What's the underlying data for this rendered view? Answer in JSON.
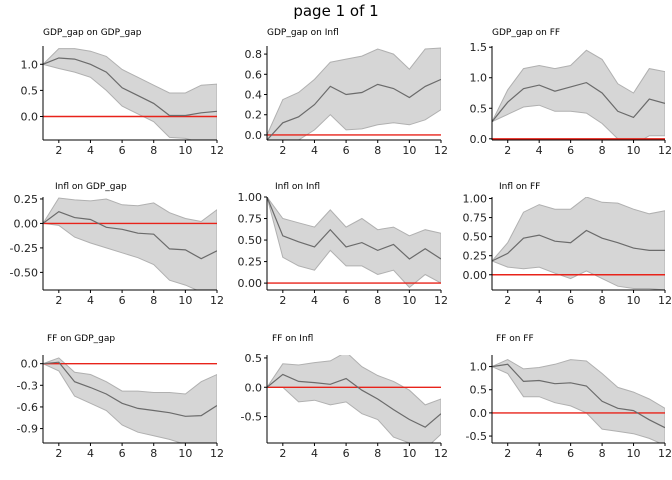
{
  "page": {
    "title": "page 1 of 1"
  },
  "colors": {
    "band": "#d6d6d6",
    "band_edge": "#b0b0b0",
    "line": "#6b6b6b",
    "zero": "#e8231a",
    "axis": "#000000"
  },
  "chart_data": [
    {
      "type": "area",
      "title": "GDP_gap on GDP_gap",
      "xlim": [
        1,
        12
      ],
      "ylim": [
        -0.45,
        1.35
      ],
      "x_ticks": [
        2,
        4,
        6,
        8,
        10,
        12
      ],
      "y_ticks": [
        0.0,
        0.5,
        1.0
      ],
      "y_tick_labels": [
        "0.0",
        "0.5",
        "1.0"
      ],
      "x": [
        1,
        2,
        3,
        4,
        5,
        6,
        7,
        8,
        9,
        10,
        11,
        12
      ],
      "series": [
        {
          "role": "upper",
          "values": [
            1.0,
            1.3,
            1.3,
            1.25,
            1.15,
            0.9,
            0.75,
            0.6,
            0.45,
            0.45,
            0.6,
            0.62
          ]
        },
        {
          "role": "estimate",
          "values": [
            1.0,
            1.12,
            1.1,
            1.0,
            0.85,
            0.55,
            0.4,
            0.25,
            0.02,
            0.02,
            0.07,
            0.1
          ]
        },
        {
          "role": "lower",
          "values": [
            1.0,
            0.92,
            0.85,
            0.75,
            0.5,
            0.2,
            0.05,
            -0.1,
            -0.4,
            -0.42,
            -0.5,
            -0.45
          ]
        }
      ]
    },
    {
      "type": "area",
      "title": "GDP_gap on Infl",
      "xlim": [
        1,
        12
      ],
      "ylim": [
        -0.05,
        0.88
      ],
      "x_ticks": [
        2,
        4,
        6,
        8,
        10,
        12
      ],
      "y_ticks": [
        0.0,
        0.2,
        0.4,
        0.6,
        0.8
      ],
      "y_tick_labels": [
        "0.0",
        "0.2",
        "0.4",
        "0.6",
        "0.8"
      ],
      "x": [
        1,
        2,
        3,
        4,
        5,
        6,
        7,
        8,
        9,
        10,
        11,
        12
      ],
      "series": [
        {
          "role": "upper",
          "values": [
            0.0,
            0.35,
            0.42,
            0.55,
            0.72,
            0.75,
            0.78,
            0.85,
            0.8,
            0.65,
            0.85,
            0.86
          ]
        },
        {
          "role": "estimate",
          "values": [
            -0.05,
            0.12,
            0.18,
            0.3,
            0.48,
            0.4,
            0.42,
            0.5,
            0.46,
            0.37,
            0.48,
            0.55
          ]
        },
        {
          "role": "lower",
          "values": [
            -0.05,
            -0.05,
            -0.05,
            0.05,
            0.2,
            0.05,
            0.06,
            0.1,
            0.12,
            0.1,
            0.15,
            0.25
          ]
        }
      ]
    },
    {
      "type": "area",
      "title": "GDP_gap on FF",
      "xlim": [
        1,
        12
      ],
      "ylim": [
        -0.02,
        1.52
      ],
      "x_ticks": [
        2,
        4,
        6,
        8,
        10,
        12
      ],
      "y_ticks": [
        0.0,
        0.5,
        1.0,
        1.5
      ],
      "y_tick_labels": [
        "0.0",
        "0.5",
        "1.0",
        "1.5"
      ],
      "x": [
        1,
        2,
        3,
        4,
        5,
        6,
        7,
        8,
        9,
        10,
        11,
        12
      ],
      "series": [
        {
          "role": "upper",
          "values": [
            0.28,
            0.8,
            1.15,
            1.2,
            1.15,
            1.2,
            1.45,
            1.3,
            0.9,
            0.75,
            1.15,
            1.1
          ]
        },
        {
          "role": "estimate",
          "values": [
            0.28,
            0.6,
            0.82,
            0.88,
            0.78,
            0.85,
            0.92,
            0.75,
            0.45,
            0.35,
            0.65,
            0.58
          ]
        },
        {
          "role": "lower",
          "values": [
            0.28,
            0.4,
            0.52,
            0.55,
            0.45,
            0.45,
            0.42,
            0.25,
            0.0,
            -0.1,
            0.05,
            0.05
          ]
        }
      ]
    },
    {
      "type": "area",
      "title": "Infl on GDP_gap",
      "xlim": [
        1,
        12
      ],
      "ylim": [
        -0.68,
        0.27
      ],
      "x_ticks": [
        2,
        4,
        6,
        8,
        10,
        12
      ],
      "y_ticks": [
        0.25,
        0.0,
        -0.25,
        -0.5
      ],
      "y_tick_labels": [
        "0.25",
        "0.00",
        "-0.25",
        "-0.50"
      ],
      "x": [
        1,
        2,
        3,
        4,
        5,
        6,
        7,
        8,
        9,
        10,
        11,
        12
      ],
      "series": [
        {
          "role": "upper",
          "values": [
            0.0,
            0.26,
            0.24,
            0.23,
            0.25,
            0.19,
            0.18,
            0.21,
            0.11,
            0.05,
            0.02,
            0.14
          ]
        },
        {
          "role": "estimate",
          "values": [
            0.0,
            0.12,
            0.06,
            0.04,
            -0.04,
            -0.06,
            -0.1,
            -0.11,
            -0.26,
            -0.27,
            -0.36,
            -0.28
          ]
        },
        {
          "role": "lower",
          "values": [
            0.0,
            -0.02,
            -0.14,
            -0.2,
            -0.25,
            -0.3,
            -0.35,
            -0.42,
            -0.58,
            -0.63,
            -0.7,
            -0.7
          ]
        }
      ]
    },
    {
      "type": "area",
      "title": "Infl on Infl",
      "xlim": [
        1,
        12
      ],
      "ylim": [
        -0.08,
        1.0
      ],
      "x_ticks": [
        2,
        4,
        6,
        8,
        10,
        12
      ],
      "y_ticks": [
        0.0,
        0.25,
        0.5,
        0.75,
        1.0
      ],
      "y_tick_labels": [
        "0.00",
        "0.25",
        "0.50",
        "0.75",
        "1.00"
      ],
      "x": [
        1,
        2,
        3,
        4,
        5,
        6,
        7,
        8,
        9,
        10,
        11,
        12
      ],
      "series": [
        {
          "role": "upper",
          "values": [
            1.0,
            0.75,
            0.7,
            0.65,
            0.85,
            0.65,
            0.75,
            0.62,
            0.65,
            0.55,
            0.62,
            0.58
          ]
        },
        {
          "role": "estimate",
          "values": [
            1.0,
            0.55,
            0.48,
            0.42,
            0.62,
            0.42,
            0.47,
            0.38,
            0.45,
            0.28,
            0.4,
            0.28
          ]
        },
        {
          "role": "lower",
          "values": [
            1.0,
            0.3,
            0.2,
            0.15,
            0.38,
            0.2,
            0.2,
            0.1,
            0.15,
            -0.05,
            0.1,
            0.0
          ]
        }
      ]
    },
    {
      "type": "area",
      "title": "Infl on FF",
      "xlim": [
        1,
        12
      ],
      "ylim": [
        -0.2,
        1.02
      ],
      "x_ticks": [
        2,
        4,
        6,
        8,
        10,
        12
      ],
      "y_ticks": [
        0.0,
        0.25,
        0.5,
        0.75,
        1.0
      ],
      "y_tick_labels": [
        "0.00",
        "0.25",
        "0.50",
        "0.75",
        "1.00"
      ],
      "x": [
        1,
        2,
        3,
        4,
        5,
        6,
        7,
        8,
        9,
        10,
        11,
        12
      ],
      "series": [
        {
          "role": "upper",
          "values": [
            0.18,
            0.42,
            0.82,
            0.92,
            0.86,
            0.86,
            1.02,
            0.95,
            0.94,
            0.86,
            0.8,
            0.84
          ]
        },
        {
          "role": "estimate",
          "values": [
            0.18,
            0.28,
            0.48,
            0.52,
            0.44,
            0.42,
            0.58,
            0.48,
            0.42,
            0.35,
            0.32,
            0.32
          ]
        },
        {
          "role": "lower",
          "values": [
            0.18,
            0.1,
            0.08,
            0.1,
            0.02,
            -0.05,
            0.05,
            -0.05,
            -0.15,
            -0.18,
            -0.18,
            -0.2
          ]
        }
      ]
    },
    {
      "type": "area",
      "title": "FF on GDP_gap",
      "xlim": [
        1,
        12
      ],
      "ylim": [
        -1.1,
        0.12
      ],
      "x_ticks": [
        2,
        4,
        6,
        8,
        10,
        12
      ],
      "y_ticks": [
        0.0,
        -0.3,
        -0.6,
        -0.9
      ],
      "y_tick_labels": [
        "0.0",
        "-0.3",
        "-0.6",
        "-0.9"
      ],
      "x": [
        1,
        2,
        3,
        4,
        5,
        6,
        7,
        8,
        9,
        10,
        11,
        12
      ],
      "series": [
        {
          "role": "upper",
          "values": [
            0.0,
            0.08,
            -0.12,
            -0.15,
            -0.25,
            -0.38,
            -0.38,
            -0.4,
            -0.4,
            -0.42,
            -0.25,
            -0.15
          ]
        },
        {
          "role": "estimate",
          "values": [
            0.0,
            0.02,
            -0.25,
            -0.33,
            -0.42,
            -0.55,
            -0.62,
            -0.65,
            -0.68,
            -0.73,
            -0.72,
            -0.58
          ]
        },
        {
          "role": "lower",
          "values": [
            0.0,
            -0.1,
            -0.45,
            -0.55,
            -0.65,
            -0.85,
            -0.95,
            -1.0,
            -1.05,
            -1.12,
            -1.15,
            -1.1
          ]
        }
      ]
    },
    {
      "type": "area",
      "title": "FF on Infl",
      "xlim": [
        1,
        12
      ],
      "ylim": [
        -0.95,
        0.55
      ],
      "x_ticks": [
        2,
        4,
        6,
        8,
        10,
        12
      ],
      "y_ticks": [
        0.5,
        0.0,
        -0.5
      ],
      "y_tick_labels": [
        "0.5",
        "0.0",
        "-0.5"
      ],
      "x": [
        1,
        2,
        3,
        4,
        5,
        6,
        7,
        8,
        9,
        10,
        11,
        12
      ],
      "series": [
        {
          "role": "upper",
          "values": [
            0.0,
            0.4,
            0.38,
            0.42,
            0.45,
            0.6,
            0.35,
            0.2,
            0.1,
            -0.05,
            -0.3,
            -0.2
          ]
        },
        {
          "role": "estimate",
          "values": [
            0.0,
            0.22,
            0.1,
            0.08,
            0.05,
            0.15,
            -0.05,
            -0.2,
            -0.38,
            -0.55,
            -0.68,
            -0.45
          ]
        },
        {
          "role": "lower",
          "values": [
            0.0,
            0.0,
            -0.25,
            -0.22,
            -0.3,
            -0.25,
            -0.45,
            -0.55,
            -0.85,
            -0.95,
            -1.05,
            -0.8
          ]
        }
      ]
    },
    {
      "type": "area",
      "title": "FF on FF",
      "xlim": [
        1,
        12
      ],
      "ylim": [
        -0.65,
        1.25
      ],
      "x_ticks": [
        2,
        4,
        6,
        8,
        10,
        12
      ],
      "y_ticks": [
        1.0,
        0.5,
        0.0,
        -0.5
      ],
      "y_tick_labels": [
        "1.0",
        "0.5",
        "0.0",
        "-0.5"
      ],
      "x": [
        1,
        2,
        3,
        4,
        5,
        6,
        7,
        8,
        9,
        10,
        11,
        12
      ],
      "series": [
        {
          "role": "upper",
          "values": [
            1.0,
            1.15,
            0.95,
            0.98,
            1.05,
            1.15,
            1.12,
            0.85,
            0.55,
            0.45,
            0.3,
            0.1
          ]
        },
        {
          "role": "estimate",
          "values": [
            1.0,
            1.05,
            0.68,
            0.7,
            0.63,
            0.65,
            0.58,
            0.25,
            0.1,
            0.05,
            -0.15,
            -0.32
          ]
        },
        {
          "role": "lower",
          "values": [
            1.0,
            0.85,
            0.35,
            0.35,
            0.22,
            0.15,
            0.0,
            -0.35,
            -0.4,
            -0.45,
            -0.55,
            -0.7
          ]
        }
      ]
    }
  ]
}
